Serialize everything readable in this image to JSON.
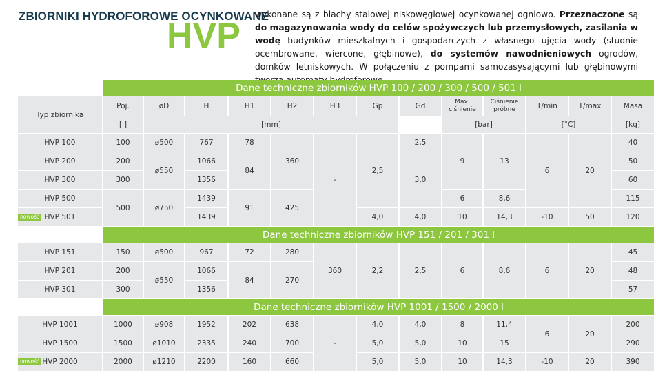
{
  "header": {
    "title": "ZBIORNIKI HYDROFOROWE OCYNKOWANE",
    "model": "HVP",
    "desc_parts": [
      {
        "t": "wykonane są z blachy stalowej niskowęglowej ocynkowanej ogniowo. ",
        "b": false
      },
      {
        "t": "Przeznaczone",
        "b": true
      },
      {
        "t": " są ",
        "b": false
      },
      {
        "t": "do magazynowania wody do celów spożywczych lub przemysłowych, zasilania w wodę",
        "b": true
      },
      {
        "t": " budynków mieszkalnych i gospodarczych z własnego ujęcia wody (studnie ocembrowane, wiercone, głębinowe), ",
        "b": false
      },
      {
        "t": "do systemów nawodnieniowych",
        "b": true
      },
      {
        "t": "  ogrodów, domków letniskowych. W połączeniu z pompami samozasysającymi lub głębinowymi tworzą automaty hydroforowe.",
        "b": false
      }
    ]
  },
  "bands": [
    "Dane techniczne zbiorników HVP 100 / 200 / 300 / 500 / 501 l",
    "Dane techniczne zbiorników HVP 151 / 201 / 301 l",
    "Dane techniczne zbiorników HVP 1001 / 1500 / 2000 l"
  ],
  "columns": {
    "type_label": "Typ zbiornika",
    "names": [
      "Poj.",
      "øD",
      "H",
      "H1",
      "H2",
      "H3",
      "Gp",
      "Gd",
      "Max. ciśnienie",
      "Ciśnienie próbne",
      "T/min",
      "T/max",
      "Masa"
    ],
    "units": {
      "poj": "[l]",
      "mm": "[mm]",
      "bar": "[bar]",
      "temp": "[°C]",
      "kg": "[kg]"
    }
  },
  "badge": "nowość",
  "s1": {
    "types": [
      "HVP 100",
      "HVP 200",
      "HVP 300",
      "HVP 500",
      "HVP 501"
    ],
    "poj": [
      "100",
      "200",
      "300",
      "500"
    ],
    "d": [
      "ø500",
      "ø550",
      "ø750"
    ],
    "h": [
      "767",
      "1066",
      "1356",
      "1439",
      "1439"
    ],
    "h1": [
      "78",
      "84",
      "91"
    ],
    "h2": [
      "360",
      "425"
    ],
    "h3": "-",
    "gp": [
      "2,5",
      "4,0"
    ],
    "gd": [
      "2,5",
      "3,0",
      "4,0"
    ],
    "maxp": [
      "9",
      "6",
      "10"
    ],
    "testp": [
      "13",
      "8,6",
      "14,3"
    ],
    "tmin": [
      "6",
      "-10"
    ],
    "tmax": [
      "20",
      "50"
    ],
    "mass": [
      "40",
      "50",
      "60",
      "115",
      "120"
    ]
  },
  "s2": {
    "types": [
      "HVP 151",
      "HVP 201",
      "HVP 301"
    ],
    "poj": [
      "150",
      "200",
      "300"
    ],
    "d": [
      "ø500",
      "ø550"
    ],
    "h": [
      "967",
      "1066",
      "1356"
    ],
    "h1": [
      "72",
      "84"
    ],
    "h2": [
      "280",
      "270"
    ],
    "h3": "360",
    "gp": "2,2",
    "gd": "2,5",
    "maxp": "6",
    "testp": "8,6",
    "tmin": "6",
    "tmax": "20",
    "mass": [
      "45",
      "48",
      "57"
    ]
  },
  "s3": {
    "types": [
      "HVP 1001",
      "HVP 1500",
      "HVP 2000"
    ],
    "poj": [
      "1000",
      "1500",
      "2000"
    ],
    "d": [
      "ø908",
      "ø1010",
      "ø1210"
    ],
    "h": [
      "1952",
      "2335",
      "2200"
    ],
    "h1": [
      "202",
      "240",
      "160"
    ],
    "h2": [
      "638",
      "700",
      "660"
    ],
    "h3": "-",
    "gp": [
      "4,0",
      "5,0",
      "5,0"
    ],
    "gd": [
      "4,0",
      "5,0",
      "5,0"
    ],
    "maxp": [
      "8",
      "10",
      "10"
    ],
    "testp": [
      "11,4",
      "15",
      "14,3"
    ],
    "tmin": [
      "6",
      "-10"
    ],
    "tmax": [
      "20",
      "20"
    ],
    "mass": [
      "200",
      "290",
      "390"
    ]
  }
}
